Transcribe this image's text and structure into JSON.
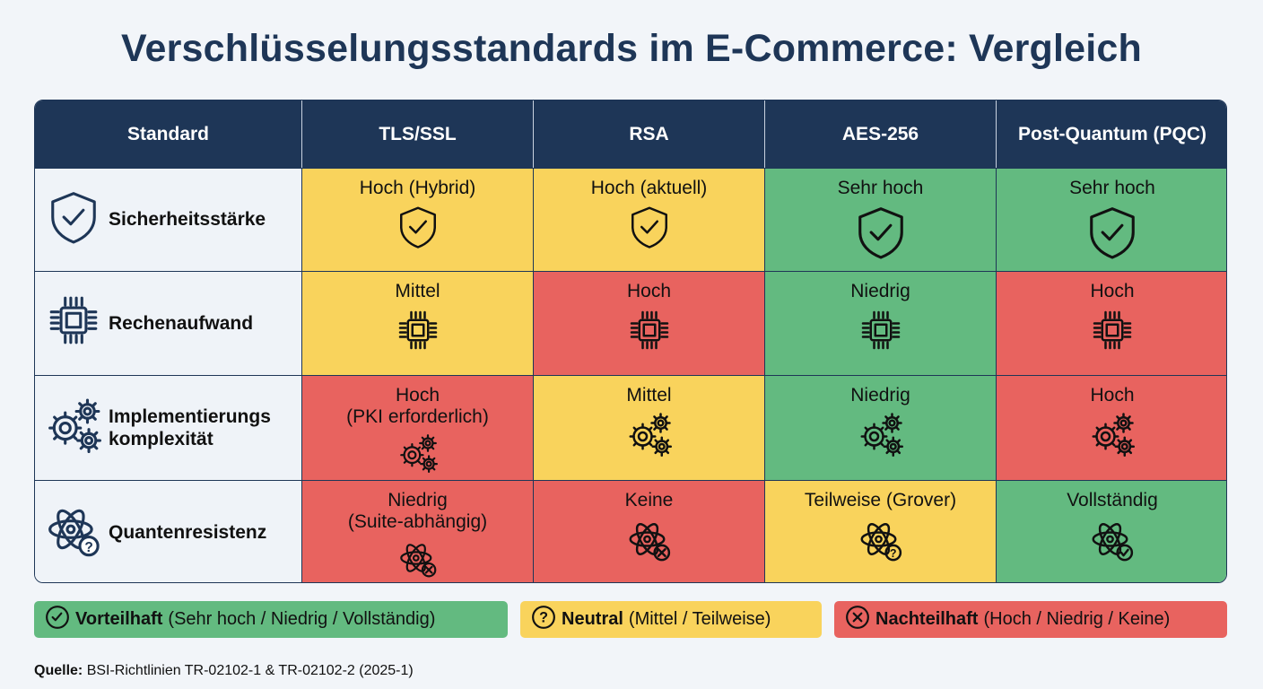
{
  "title": "Verschlüsselungsstandards im E-Commerce: Vergleich",
  "colors": {
    "header": "#1e3657",
    "green": "#63ba80",
    "yellow": "#f9d35c",
    "red": "#e8635f"
  },
  "columns": [
    "Standard",
    "TLS/SSL",
    "RSA",
    "AES-256",
    "Post-Quantum (PQC)"
  ],
  "rows": [
    {
      "label": "Sicherheitsstärke",
      "icon": "shield-check-icon",
      "cells": [
        {
          "text": "Hoch (Hybrid)",
          "rating": "yellow"
        },
        {
          "text": "Hoch (aktuell)",
          "rating": "yellow"
        },
        {
          "text": "Sehr hoch",
          "rating": "green"
        },
        {
          "text": "Sehr hoch",
          "rating": "green"
        }
      ]
    },
    {
      "label": "Rechenaufwand",
      "icon": "cpu-chip-icon",
      "cells": [
        {
          "text": "Mittel",
          "rating": "yellow"
        },
        {
          "text": "Hoch",
          "rating": "red"
        },
        {
          "text": "Niedrig",
          "rating": "green"
        },
        {
          "text": "Hoch",
          "rating": "red"
        }
      ]
    },
    {
      "label": "Implementierungs komplexität",
      "icon": "gears-icon",
      "cells": [
        {
          "text": "Hoch",
          "sub": "(PKI erforderlich)",
          "rating": "red"
        },
        {
          "text": "Mittel",
          "rating": "yellow"
        },
        {
          "text": "Niedrig",
          "rating": "green"
        },
        {
          "text": "Hoch",
          "rating": "red"
        }
      ]
    },
    {
      "label": "Quantenresistenz",
      "icon": "atom-question-icon",
      "cells": [
        {
          "text": "Niedrig",
          "sub": "(Suite-abhängig)",
          "rating": "red"
        },
        {
          "text": "Keine",
          "rating": "red"
        },
        {
          "text": "Teilweise (Grover)",
          "rating": "yellow"
        },
        {
          "text": "Vollständig",
          "rating": "green"
        }
      ]
    }
  ],
  "legend": [
    {
      "bold": "Vorteilhaft",
      "rest": "(Sehr hoch / Niedrig / Vollständig)",
      "icon": "check-circle-icon",
      "color": "green"
    },
    {
      "bold": "Neutral",
      "rest": "(Mittel / Teilweise)",
      "icon": "question-circle-icon",
      "color": "yellow"
    },
    {
      "bold": "Nachteilhaft",
      "rest": "(Hoch / Niedrig / Keine)",
      "icon": "x-circle-icon",
      "color": "red"
    }
  ],
  "source": {
    "label": "Quelle:",
    "text": "BSI-Richtlinien TR-02102-1 & TR-02102-2 (2025-1)"
  }
}
